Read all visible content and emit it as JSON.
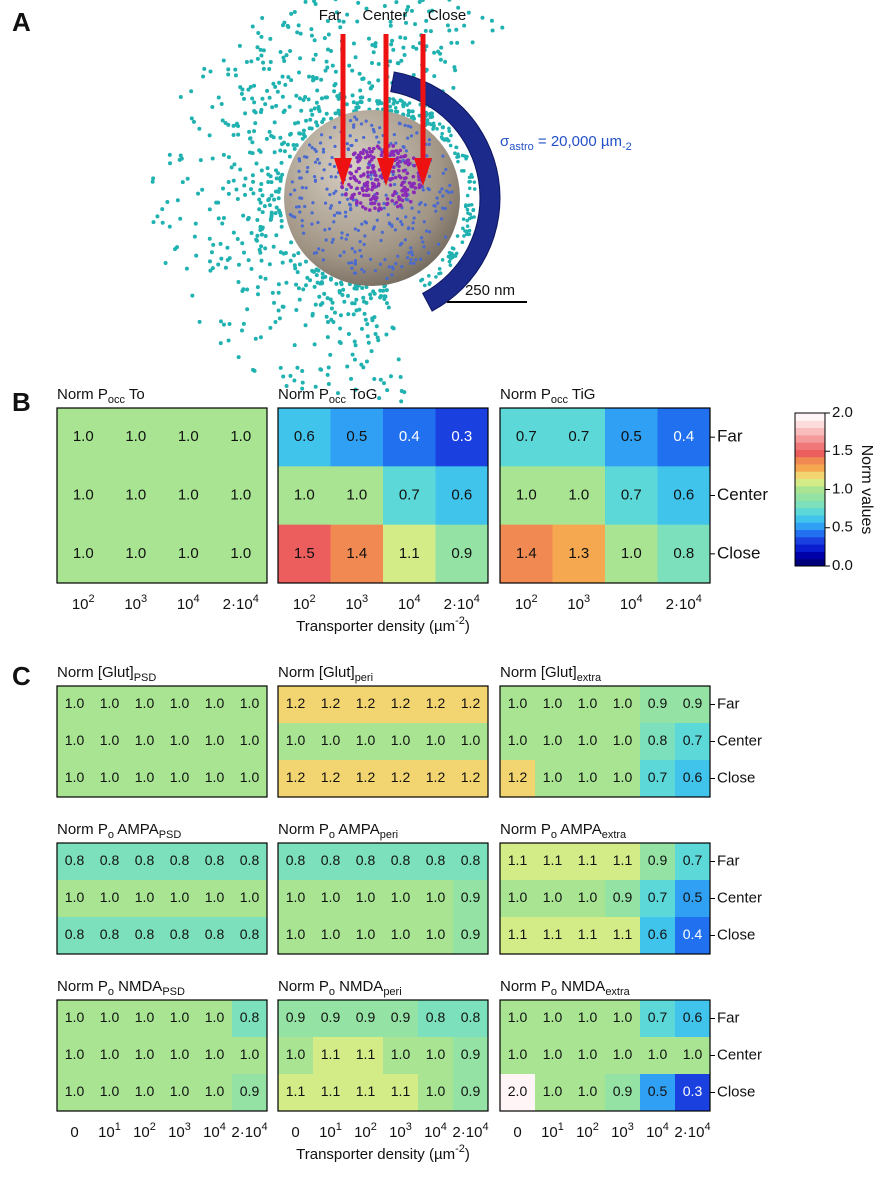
{
  "panels": {
    "a": "A",
    "b": "B",
    "c": "C"
  },
  "panel_a": {
    "arrows": [
      "Far",
      "Center",
      "Close"
    ],
    "sigma": [
      "σ",
      "astro",
      " = 20,000 µm",
      "-2"
    ],
    "scale_bar": "250 nm"
  },
  "chart_data": [
    {
      "type": "heatmap",
      "title": [
        "Norm P",
        "occ",
        " To"
      ],
      "categories": [
        [
          "10",
          "2"
        ],
        [
          "10",
          "3"
        ],
        [
          "10",
          "4"
        ],
        [
          "2·10",
          "4"
        ]
      ],
      "values": [
        [
          1.0,
          1.0,
          1.0,
          1.0
        ],
        [
          1.0,
          1.0,
          1.0,
          1.0
        ],
        [
          1.0,
          1.0,
          1.0,
          1.0
        ]
      ],
      "value_labels": [
        [
          "1.0",
          "1.0",
          "1.0",
          "1.0"
        ],
        [
          "1.0",
          "1.0",
          "1.0",
          "1.0"
        ],
        [
          "1.0",
          "1.0",
          "1.0",
          "1.0"
        ]
      ]
    },
    {
      "type": "heatmap",
      "title": [
        "Norm P",
        "occ",
        " ToG"
      ],
      "categories": [
        [
          "10",
          "2"
        ],
        [
          "10",
          "3"
        ],
        [
          "10",
          "4"
        ],
        [
          "2·10",
          "4"
        ]
      ],
      "xlabel": [
        "Transporter density (µm",
        "-2",
        ")"
      ],
      "values": [
        [
          0.6,
          0.5,
          0.4,
          0.3
        ],
        [
          1.0,
          1.0,
          0.7,
          0.6
        ],
        [
          1.5,
          1.4,
          1.1,
          0.9
        ]
      ],
      "value_labels": [
        [
          "0.6",
          "0.5",
          "0.4",
          "0.3"
        ],
        [
          "1.0",
          "1.0",
          "0.7",
          "0.6"
        ],
        [
          "1.5",
          "1.4",
          "1.1",
          "0.9"
        ]
      ]
    },
    {
      "type": "heatmap",
      "title": [
        "Norm P",
        "occ",
        " TiG"
      ],
      "categories": [
        [
          "10",
          "2"
        ],
        [
          "10",
          "3"
        ],
        [
          "10",
          "4"
        ],
        [
          "2·10",
          "4"
        ]
      ],
      "rows": [
        "Far",
        "Center",
        "Close"
      ],
      "values": [
        [
          0.7,
          0.7,
          0.5,
          0.4
        ],
        [
          1.0,
          1.0,
          0.7,
          0.6
        ],
        [
          1.4,
          1.3,
          1.0,
          0.8
        ]
      ],
      "value_labels": [
        [
          "0.7",
          "0.7",
          "0.5",
          "0.4"
        ],
        [
          "1.0",
          "1.0",
          "0.7",
          "0.6"
        ],
        [
          "1.4",
          "1.3",
          "1.0",
          "0.8"
        ]
      ]
    },
    {
      "type": "heatmap",
      "title": [
        "Norm [Glut]",
        "PSD"
      ],
      "values": [
        [
          1.0,
          1.0,
          1.0,
          1.0,
          1.0,
          1.0
        ],
        [
          1.0,
          1.0,
          1.0,
          1.0,
          1.0,
          1.0
        ],
        [
          1.0,
          1.0,
          1.0,
          1.0,
          1.0,
          1.0
        ]
      ],
      "value_labels": [
        [
          "1.0",
          "1.0",
          "1.0",
          "1.0",
          "1.0",
          "1.0"
        ],
        [
          "1.0",
          "1.0",
          "1.0",
          "1.0",
          "1.0",
          "1.0"
        ],
        [
          "1.0",
          "1.0",
          "1.0",
          "1.0",
          "1.0",
          "1.0"
        ]
      ]
    },
    {
      "type": "heatmap",
      "title": [
        "Norm [Glut]",
        "peri"
      ],
      "values": [
        [
          1.2,
          1.2,
          1.2,
          1.2,
          1.2,
          1.2
        ],
        [
          1.0,
          1.0,
          1.0,
          1.0,
          1.0,
          1.0
        ],
        [
          1.2,
          1.2,
          1.2,
          1.2,
          1.2,
          1.2
        ]
      ],
      "value_labels": [
        [
          "1.2",
          "1.2",
          "1.2",
          "1.2",
          "1.2",
          "1.2"
        ],
        [
          "1.0",
          "1.0",
          "1.0",
          "1.0",
          "1.0",
          "1.0"
        ],
        [
          "1.2",
          "1.2",
          "1.2",
          "1.2",
          "1.2",
          "1.2"
        ]
      ]
    },
    {
      "type": "heatmap",
      "title": [
        "Norm [Glut]",
        "extra"
      ],
      "rows": [
        "Far",
        "Center",
        "Close"
      ],
      "values": [
        [
          1.0,
          1.0,
          1.0,
          1.0,
          0.9,
          0.9
        ],
        [
          1.0,
          1.0,
          1.0,
          1.0,
          0.8,
          0.7
        ],
        [
          1.2,
          1.0,
          1.0,
          1.0,
          0.7,
          0.6
        ]
      ],
      "value_labels": [
        [
          "1.0",
          "1.0",
          "1.0",
          "1.0",
          "0.9",
          "0.9"
        ],
        [
          "1.0",
          "1.0",
          "1.0",
          "1.0",
          "0.8",
          "0.7"
        ],
        [
          "1.2",
          "1.0",
          "1.0",
          "1.0",
          "0.7",
          "0.6"
        ]
      ]
    },
    {
      "type": "heatmap",
      "title": [
        "Norm P",
        "o",
        " AMPA",
        "PSD"
      ],
      "values": [
        [
          0.8,
          0.8,
          0.8,
          0.8,
          0.8,
          0.8
        ],
        [
          1.0,
          1.0,
          1.0,
          1.0,
          1.0,
          1.0
        ],
        [
          0.8,
          0.8,
          0.8,
          0.8,
          0.8,
          0.8
        ]
      ],
      "value_labels": [
        [
          "0.8",
          "0.8",
          "0.8",
          "0.8",
          "0.8",
          "0.8"
        ],
        [
          "1.0",
          "1.0",
          "1.0",
          "1.0",
          "1.0",
          "1.0"
        ],
        [
          "0.8",
          "0.8",
          "0.8",
          "0.8",
          "0.8",
          "0.8"
        ]
      ]
    },
    {
      "type": "heatmap",
      "title": [
        "Norm P",
        "o",
        " AMPA",
        "peri"
      ],
      "values": [
        [
          0.8,
          0.8,
          0.8,
          0.8,
          0.8,
          0.8
        ],
        [
          1.0,
          1.0,
          1.0,
          1.0,
          1.0,
          0.9
        ],
        [
          1.0,
          1.0,
          1.0,
          1.0,
          1.0,
          0.9
        ]
      ],
      "value_labels": [
        [
          "0.8",
          "0.8",
          "0.8",
          "0.8",
          "0.8",
          "0.8"
        ],
        [
          "1.0",
          "1.0",
          "1.0",
          "1.0",
          "1.0",
          "0.9"
        ],
        [
          "1.0",
          "1.0",
          "1.0",
          "1.0",
          "1.0",
          "0.9"
        ]
      ]
    },
    {
      "type": "heatmap",
      "title": [
        "Norm P",
        "o",
        " AMPA",
        "extra"
      ],
      "rows": [
        "Far",
        "Center",
        "Close"
      ],
      "values": [
        [
          1.1,
          1.1,
          1.1,
          1.1,
          0.9,
          0.7
        ],
        [
          1.0,
          1.0,
          1.0,
          0.9,
          0.7,
          0.5
        ],
        [
          1.1,
          1.1,
          1.1,
          1.1,
          0.6,
          0.4
        ]
      ],
      "value_labels": [
        [
          "1.1",
          "1.1",
          "1.1",
          "1.1",
          "0.9",
          "0.7"
        ],
        [
          "1.0",
          "1.0",
          "1.0",
          "0.9",
          "0.7",
          "0.5"
        ],
        [
          "1.1",
          "1.1",
          "1.1",
          "1.1",
          "0.6",
          "0.4"
        ]
      ]
    },
    {
      "type": "heatmap",
      "title": [
        "Norm P",
        "o",
        " NMDA",
        "PSD"
      ],
      "categories": [
        [
          "0"
        ],
        [
          "10",
          "1"
        ],
        [
          "10",
          "2"
        ],
        [
          "10",
          "3"
        ],
        [
          "10",
          "4"
        ],
        [
          "2·10",
          "4"
        ]
      ],
      "values": [
        [
          1.0,
          1.0,
          1.0,
          1.0,
          1.0,
          0.8
        ],
        [
          1.0,
          1.0,
          1.0,
          1.0,
          1.0,
          1.0
        ],
        [
          1.0,
          1.0,
          1.0,
          1.0,
          1.0,
          0.9
        ]
      ],
      "value_labels": [
        [
          "1.0",
          "1.0",
          "1.0",
          "1.0",
          "1.0",
          "0.8"
        ],
        [
          "1.0",
          "1.0",
          "1.0",
          "1.0",
          "1.0",
          "1.0"
        ],
        [
          "1.0",
          "1.0",
          "1.0",
          "1.0",
          "1.0",
          "0.9"
        ]
      ]
    },
    {
      "type": "heatmap",
      "title": [
        "Norm P",
        "o",
        " NMDA",
        "peri"
      ],
      "categories": [
        [
          "0"
        ],
        [
          "10",
          "1"
        ],
        [
          "10",
          "2"
        ],
        [
          "10",
          "3"
        ],
        [
          "10",
          "4"
        ],
        [
          "2·10",
          "4"
        ]
      ],
      "xlabel": [
        "Transporter density (µm",
        "-2",
        ")"
      ],
      "values": [
        [
          0.9,
          0.9,
          0.9,
          0.9,
          0.8,
          0.8
        ],
        [
          1.0,
          1.1,
          1.1,
          1.0,
          1.0,
          0.9
        ],
        [
          1.1,
          1.1,
          1.1,
          1.1,
          1.0,
          0.9
        ]
      ],
      "value_labels": [
        [
          "0.9",
          "0.9",
          "0.9",
          "0.9",
          "0.8",
          "0.8"
        ],
        [
          "1.0",
          "1.1",
          "1.1",
          "1.0",
          "1.0",
          "0.9"
        ],
        [
          "1.1",
          "1.1",
          "1.1",
          "1.1",
          "1.0",
          "0.9"
        ]
      ]
    },
    {
      "type": "heatmap",
      "title": [
        "Norm P",
        "o",
        " NMDA",
        "extra"
      ],
      "categories": [
        [
          "0"
        ],
        [
          "10",
          "1"
        ],
        [
          "10",
          "2"
        ],
        [
          "10",
          "3"
        ],
        [
          "10",
          "4"
        ],
        [
          "2·10",
          "4"
        ]
      ],
      "rows": [
        "Far",
        "Center",
        "Close"
      ],
      "values": [
        [
          1.0,
          1.0,
          1.0,
          1.0,
          0.7,
          0.6
        ],
        [
          1.0,
          1.0,
          1.0,
          1.0,
          1.0,
          1.0
        ],
        [
          2.0,
          1.0,
          1.0,
          0.9,
          0.5,
          0.3
        ]
      ],
      "value_labels": [
        [
          "1.0",
          "1.0",
          "1.0",
          "1.0",
          "0.7",
          "0.6"
        ],
        [
          "1.0",
          "1.0",
          "1.0",
          "1.0",
          "1.0",
          "1.0"
        ],
        [
          "2.0",
          "1.0",
          "1.0",
          "0.9",
          "0.5",
          "0.3"
        ]
      ]
    },
    {
      "type": "colorbar",
      "label": "Norm values",
      "clim": [
        0,
        2
      ],
      "ticks": [
        {
          "value": 0,
          "label": "0.0"
        },
        {
          "value": 0.5,
          "label": "0.5"
        },
        {
          "value": 1,
          "label": "1.0"
        },
        {
          "value": 1.5,
          "label": "1.5"
        },
        {
          "value": 2,
          "label": "2.0"
        }
      ],
      "colormap": [
        "#00007a",
        "#0000a8",
        "#0a1ed0",
        "#1a40e0",
        "#2070f0",
        "#30a0f4",
        "#40c4ec",
        "#5cd8d8",
        "#7ce0bc",
        "#94e2a4",
        "#a8e492",
        "#d4ec88",
        "#f2d470",
        "#f6a850",
        "#f08a52",
        "#ec5e5e",
        "#f07878",
        "#f49a9a",
        "#f8bcbc",
        "#fcdcdc",
        "#fff4f6"
      ]
    }
  ]
}
